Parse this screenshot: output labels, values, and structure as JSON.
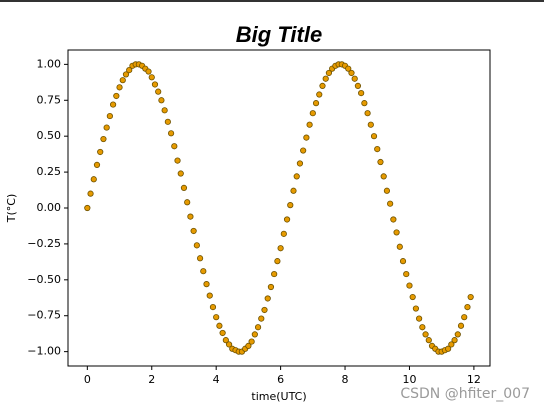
{
  "chart_data": {
    "type": "scatter",
    "title": "Big Title",
    "x_label": "time(UTC)",
    "y_label": "T(°C)",
    "color": "#e69a00",
    "edgecolor": "#6e5200",
    "x": [
      0,
      0.1,
      0.2,
      0.3,
      0.4,
      0.5,
      0.6,
      0.7,
      0.8,
      0.9,
      1,
      1.1,
      1.2,
      1.3,
      1.4,
      1.5,
      1.6,
      1.7,
      1.8,
      1.9,
      2,
      2.1,
      2.2,
      2.3,
      2.4,
      2.5,
      2.6,
      2.7,
      2.8,
      2.9,
      3,
      3.1,
      3.2,
      3.3,
      3.4,
      3.5,
      3.6,
      3.7,
      3.8,
      3.9,
      4,
      4.1,
      4.2,
      4.3,
      4.4,
      4.5,
      4.6,
      4.7,
      4.8,
      4.9,
      5,
      5.1,
      5.2,
      5.3,
      5.4,
      5.5,
      5.6,
      5.7,
      5.8,
      5.9,
      6,
      6.1,
      6.2,
      6.3,
      6.4,
      6.5,
      6.6,
      6.7,
      6.8,
      6.9,
      7,
      7.1,
      7.2,
      7.3,
      7.4,
      7.5,
      7.6,
      7.7,
      7.8,
      7.9,
      8,
      8.1,
      8.2,
      8.3,
      8.4,
      8.5,
      8.6,
      8.7,
      8.8,
      8.9,
      9,
      9.1,
      9.2,
      9.3,
      9.4,
      9.5,
      9.6,
      9.7,
      9.8,
      9.9,
      10,
      10.1,
      10.2,
      10.3,
      10.4,
      10.5,
      10.6,
      10.7,
      10.8,
      10.9,
      11,
      11.1,
      11.2,
      11.3,
      11.4,
      11.5,
      11.6,
      11.7,
      11.8,
      11.9
    ],
    "values": [
      0,
      0.1,
      0.2,
      0.3,
      0.39,
      0.48,
      0.56,
      0.64,
      0.72,
      0.78,
      0.84,
      0.89,
      0.93,
      0.96,
      0.99,
      1,
      1,
      0.99,
      0.97,
      0.95,
      0.91,
      0.86,
      0.81,
      0.75,
      0.68,
      0.6,
      0.52,
      0.43,
      0.33,
      0.24,
      0.14,
      0.04,
      -0.06,
      -0.16,
      -0.26,
      -0.35,
      -0.44,
      -0.53,
      -0.61,
      -0.69,
      -0.76,
      -0.82,
      -0.87,
      -0.92,
      -0.95,
      -0.98,
      -0.99,
      -1,
      -1,
      -0.98,
      -0.96,
      -0.93,
      -0.88,
      -0.83,
      -0.77,
      -0.71,
      -0.63,
      -0.55,
      -0.46,
      -0.37,
      -0.28,
      -0.18,
      -0.08,
      0.02,
      0.12,
      0.22,
      0.31,
      0.4,
      0.49,
      0.58,
      0.66,
      0.73,
      0.79,
      0.85,
      0.9,
      0.94,
      0.97,
      0.99,
      1,
      1,
      0.99,
      0.97,
      0.94,
      0.9,
      0.85,
      0.8,
      0.73,
      0.66,
      0.58,
      0.5,
      0.41,
      0.32,
      0.22,
      0.12,
      0.03,
      -0.08,
      -0.17,
      -0.27,
      -0.37,
      -0.46,
      -0.54,
      -0.62,
      -0.7,
      -0.77,
      -0.83,
      -0.88,
      -0.92,
      -0.96,
      -0.98,
      -1,
      -1,
      -0.99,
      -0.98,
      -0.95,
      -0.92,
      -0.88,
      -0.82,
      -0.76,
      -0.69,
      -0.62
    ],
    "xlim": [
      -0.6,
      12.5
    ],
    "xticks": [
      0,
      2,
      4,
      6,
      8,
      10,
      12
    ],
    "ylim": [
      -1.1,
      1.1
    ],
    "yticks": [
      {
        "value": -1,
        "label": "−1.00"
      },
      {
        "value": -0.75,
        "label": "−0.75"
      },
      {
        "value": -0.5,
        "label": "−0.50"
      },
      {
        "value": -0.25,
        "label": "−0.25"
      },
      {
        "value": 0,
        "label": "0.00"
      },
      {
        "value": 0.25,
        "label": "0.25"
      },
      {
        "value": 0.5,
        "label": "0.50"
      },
      {
        "value": 0.75,
        "label": "0.75"
      },
      {
        "value": 1,
        "label": "1.00"
      }
    ],
    "grid": false
  },
  "watermark": "CSDN @hfiter_007"
}
